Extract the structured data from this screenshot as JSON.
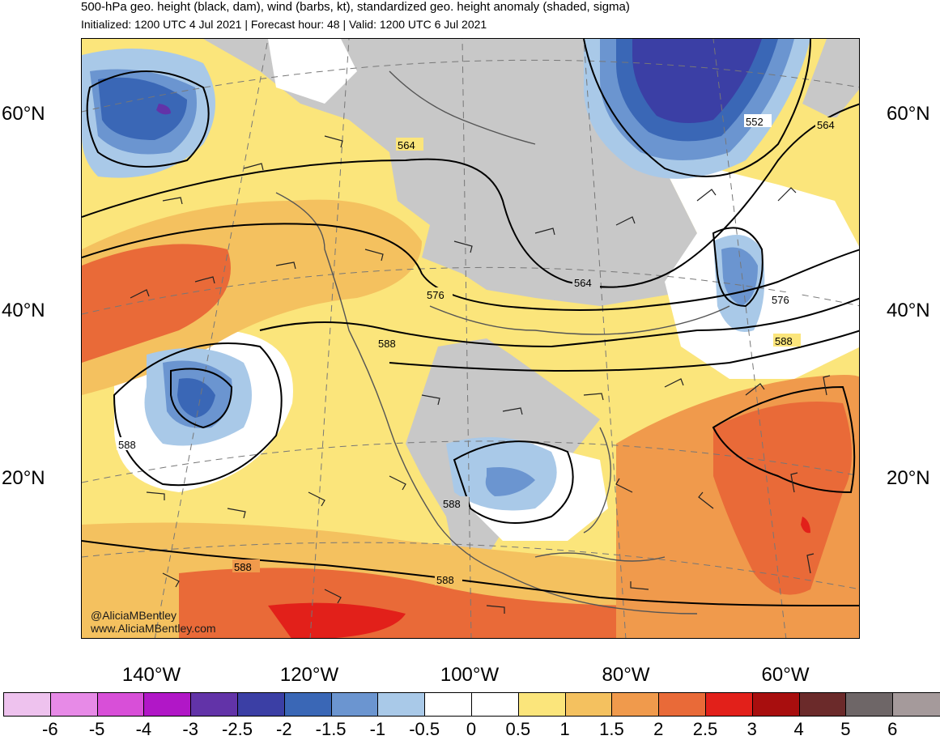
{
  "title": "500-hPa geo. height (black, dam), wind (barbs, kt), standardized geo. height anomaly (shaded, sigma)",
  "subtitle": "Initialized: 1200 UTC 4 Jul 2021 | Forecast hour: 48 | Valid: 1200 UTC 6 Jul 2021",
  "lat_labels": [
    "60°N",
    "40°N",
    "20°N"
  ],
  "lon_labels": [
    "140°W",
    "120°W",
    "100°W",
    "80°W",
    "60°W"
  ],
  "contour_labels": [
    "564",
    "552",
    "564",
    "576",
    "564",
    "576",
    "588",
    "588",
    "588",
    "588",
    "588",
    "588"
  ],
  "credit": [
    "@AliciaMBentley",
    "www.AliciaMBentley.com"
  ],
  "colorbar": {
    "labels": [
      "-6",
      "-5",
      "-4",
      "-3",
      "-2.5",
      "-2",
      "-1.5",
      "-1",
      "-0.5",
      "0",
      "0.5",
      "1",
      "1.5",
      "2",
      "2.5",
      "3",
      "4",
      "5",
      "6"
    ],
    "colors": [
      "#eec2ee",
      "#e78ae7",
      "#d84fd8",
      "#b117c7",
      "#6233a8",
      "#3b3fa5",
      "#3a67b6",
      "#6b95d0",
      "#a9c9e8",
      "#ffffff",
      "#ffffff",
      "#fbe57b",
      "#f4c15f",
      "#f09a4c",
      "#e96a38",
      "#e2201a",
      "#a80e0e",
      "#6b2a2a",
      "#6e6667",
      "#a59a9b"
    ]
  },
  "shading_colors": {
    "neutral_gray": "#c8c8c8",
    "yellow_0_5": "#fbe57b",
    "gold_1": "#f4c15f",
    "orange_1_5": "#f09a4c",
    "dark_orange_2": "#e96a38",
    "red_2_5": "#e2201a",
    "light_blue": "#a9c9e8",
    "mid_blue": "#6b95d0",
    "blue": "#3a67b6",
    "deep_blue": "#3b3fa5",
    "purple": "#6233a8"
  }
}
